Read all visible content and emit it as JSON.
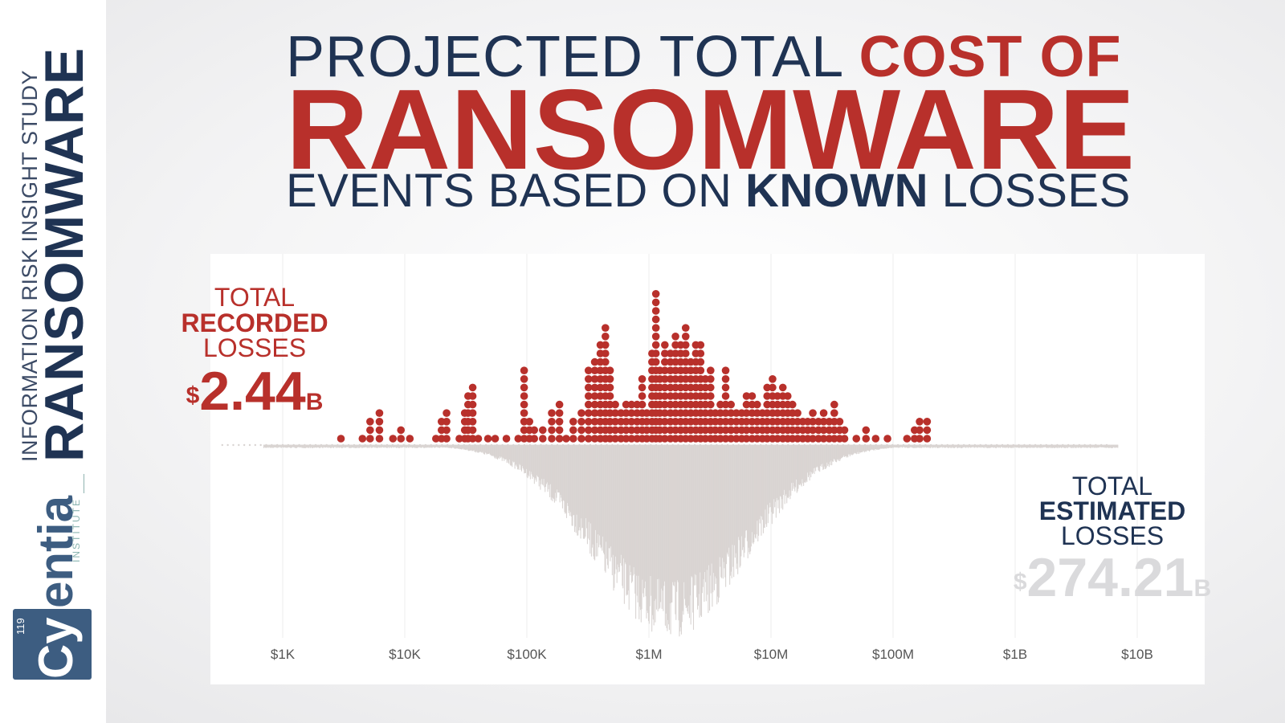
{
  "sidebar": {
    "series_label": "INFORMATION RISK INSIGHT STUDY",
    "series_name": "RANSOMWARE",
    "logo": {
      "word": "Cyentia",
      "number": "119",
      "suffix": "INSTITUTE"
    }
  },
  "headline": {
    "line1_plain": "PROJECTED TOTAL ",
    "line1_emph": "COST OF",
    "line2": "RANSOMWARE",
    "line3_a": "EVENTS BASED ON ",
    "line3_emph": "KNOWN",
    "line3_b": " LOSSES"
  },
  "recorded": {
    "l1": "TOTAL",
    "l2": "RECORDED",
    "l3": "LOSSES",
    "currency": "$",
    "value": "2.44",
    "unit": "B"
  },
  "estimated": {
    "l1": "TOTAL",
    "l2": "ESTIMATED",
    "l3": "LOSSES",
    "currency": "$",
    "value": "274.21",
    "unit": "B"
  },
  "colors": {
    "recorded": "#b8302b",
    "estimated": "#d9d4d2",
    "navy": "#1f3353",
    "grid": "#ececec"
  },
  "chart_data": {
    "type": "dot-plot",
    "x_scale": "log",
    "xlim": [
      300,
      20000000000
    ],
    "ticks": [
      {
        "label": "$1K",
        "value": 1000
      },
      {
        "label": "$10K",
        "value": 10000
      },
      {
        "label": "$100K",
        "value": 100000
      },
      {
        "label": "$1M",
        "value": 1000000
      },
      {
        "label": "$10M",
        "value": 10000000
      },
      {
        "label": "$100M",
        "value": 100000000
      },
      {
        "label": "$1B",
        "value": 1000000000
      },
      {
        "label": "$10B",
        "value": 10000000000
      }
    ],
    "series": [
      {
        "name": "RECORDED LOSSES",
        "stacks": [
          [
            3000,
            1
          ],
          [
            4500,
            1
          ],
          [
            5200,
            3
          ],
          [
            6200,
            4
          ],
          [
            8000,
            1
          ],
          [
            9300,
            2
          ],
          [
            11000,
            1
          ],
          [
            18000,
            1
          ],
          [
            20000,
            3
          ],
          [
            22000,
            4
          ],
          [
            28000,
            1
          ],
          [
            31000,
            4
          ],
          [
            33000,
            6
          ],
          [
            36000,
            7
          ],
          [
            40000,
            1
          ],
          [
            48000,
            1
          ],
          [
            55000,
            1
          ],
          [
            68000,
            1
          ],
          [
            85000,
            1
          ],
          [
            95000,
            9
          ],
          [
            105000,
            3
          ],
          [
            115000,
            2
          ],
          [
            135000,
            2
          ],
          [
            160000,
            4
          ],
          [
            185000,
            5
          ],
          [
            210000,
            1
          ],
          [
            240000,
            3
          ],
          [
            280000,
            4
          ],
          [
            320000,
            9
          ],
          [
            360000,
            10
          ],
          [
            400000,
            12
          ],
          [
            440000,
            14
          ],
          [
            480000,
            9
          ],
          [
            530000,
            5
          ],
          [
            590000,
            4
          ],
          [
            650000,
            5
          ],
          [
            720000,
            5
          ],
          [
            800000,
            5
          ],
          [
            880000,
            8
          ],
          [
            960000,
            4
          ],
          [
            1060000,
            11
          ],
          [
            1140000,
            18
          ],
          [
            1230000,
            9
          ],
          [
            1350000,
            12
          ],
          [
            1500000,
            11
          ],
          [
            1650000,
            13
          ],
          [
            1820000,
            12
          ],
          [
            2000000,
            14
          ],
          [
            2200000,
            10
          ],
          [
            2420000,
            12
          ],
          [
            2650000,
            12
          ],
          [
            2900000,
            8
          ],
          [
            3200000,
            9
          ],
          [
            3500000,
            4
          ],
          [
            3850000,
            5
          ],
          [
            4250000,
            9
          ],
          [
            4700000,
            5
          ],
          [
            5200000,
            4
          ],
          [
            5750000,
            4
          ],
          [
            6300000,
            6
          ],
          [
            7000000,
            6
          ],
          [
            7700000,
            5
          ],
          [
            8500000,
            4
          ],
          [
            9300000,
            7
          ],
          [
            10300000,
            8
          ],
          [
            11300000,
            6
          ],
          [
            12500000,
            7
          ],
          [
            13700000,
            6
          ],
          [
            15000000,
            5
          ],
          [
            16500000,
            4
          ],
          [
            18200000,
            3
          ],
          [
            20000000,
            3
          ],
          [
            22000000,
            4
          ],
          [
            24500000,
            3
          ],
          [
            27000000,
            4
          ],
          [
            30000000,
            3
          ],
          [
            33000000,
            5
          ],
          [
            36500000,
            3
          ],
          [
            40000000,
            2
          ],
          [
            50000000,
            1
          ],
          [
            60000000,
            2
          ],
          [
            72000000,
            1
          ],
          [
            90000000,
            1
          ],
          [
            130000000,
            1
          ],
          [
            150000000,
            2
          ],
          [
            165000000,
            3
          ],
          [
            190000000,
            3
          ]
        ]
      },
      {
        "name": "ESTIMATED LOSSES",
        "summary": "simulated distribution, centered near $1.5M, spanning roughly $700 to $7B"
      }
    ]
  }
}
